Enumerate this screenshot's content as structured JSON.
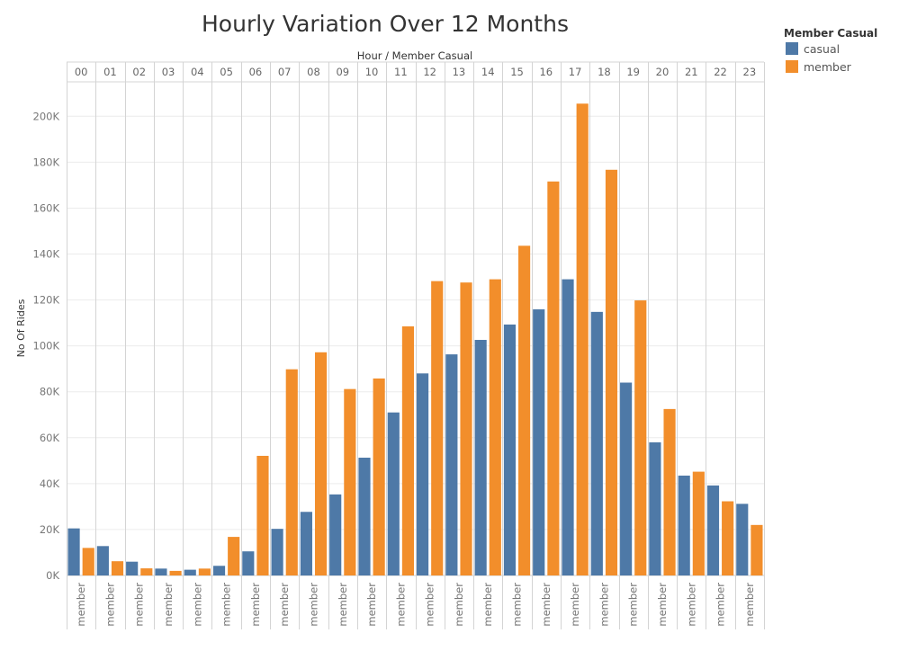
{
  "chart_data": {
    "type": "bar",
    "title": "Hourly Variation Over 12 Months",
    "header_label": "Hour  /  Member Casual",
    "ylabel": "No Of Rides",
    "ylim": [
      0,
      215000
    ],
    "yticks": [
      0,
      20000,
      40000,
      60000,
      80000,
      100000,
      120000,
      140000,
      160000,
      180000,
      200000
    ],
    "ytick_labels": [
      "0K",
      "20K",
      "40K",
      "60K",
      "80K",
      "100K",
      "120K",
      "140K",
      "160K",
      "180K",
      "200K"
    ],
    "categories": [
      "00",
      "01",
      "02",
      "03",
      "04",
      "05",
      "06",
      "07",
      "08",
      "09",
      "10",
      "11",
      "12",
      "13",
      "14",
      "15",
      "16",
      "17",
      "18",
      "19",
      "20",
      "21",
      "22",
      "23"
    ],
    "bottom_label": "member",
    "legend": {
      "title": "Member Casual",
      "placement": "top-right"
    },
    "series": [
      {
        "name": "casual",
        "color": "#4e79a7",
        "values": [
          20500,
          12800,
          6000,
          3000,
          2500,
          4200,
          10500,
          20300,
          27700,
          35300,
          51300,
          71000,
          88000,
          96300,
          102600,
          109300,
          115900,
          129000,
          114800,
          84000,
          58000,
          43500,
          39200,
          31200
        ]
      },
      {
        "name": "member",
        "color": "#f28e2b",
        "values": [
          12000,
          6200,
          3100,
          2000,
          3000,
          16800,
          52100,
          89800,
          97200,
          81200,
          85800,
          108500,
          128200,
          127600,
          129000,
          143600,
          171600,
          205500,
          176700,
          119800,
          72500,
          45200,
          32300,
          22000
        ]
      }
    ]
  }
}
